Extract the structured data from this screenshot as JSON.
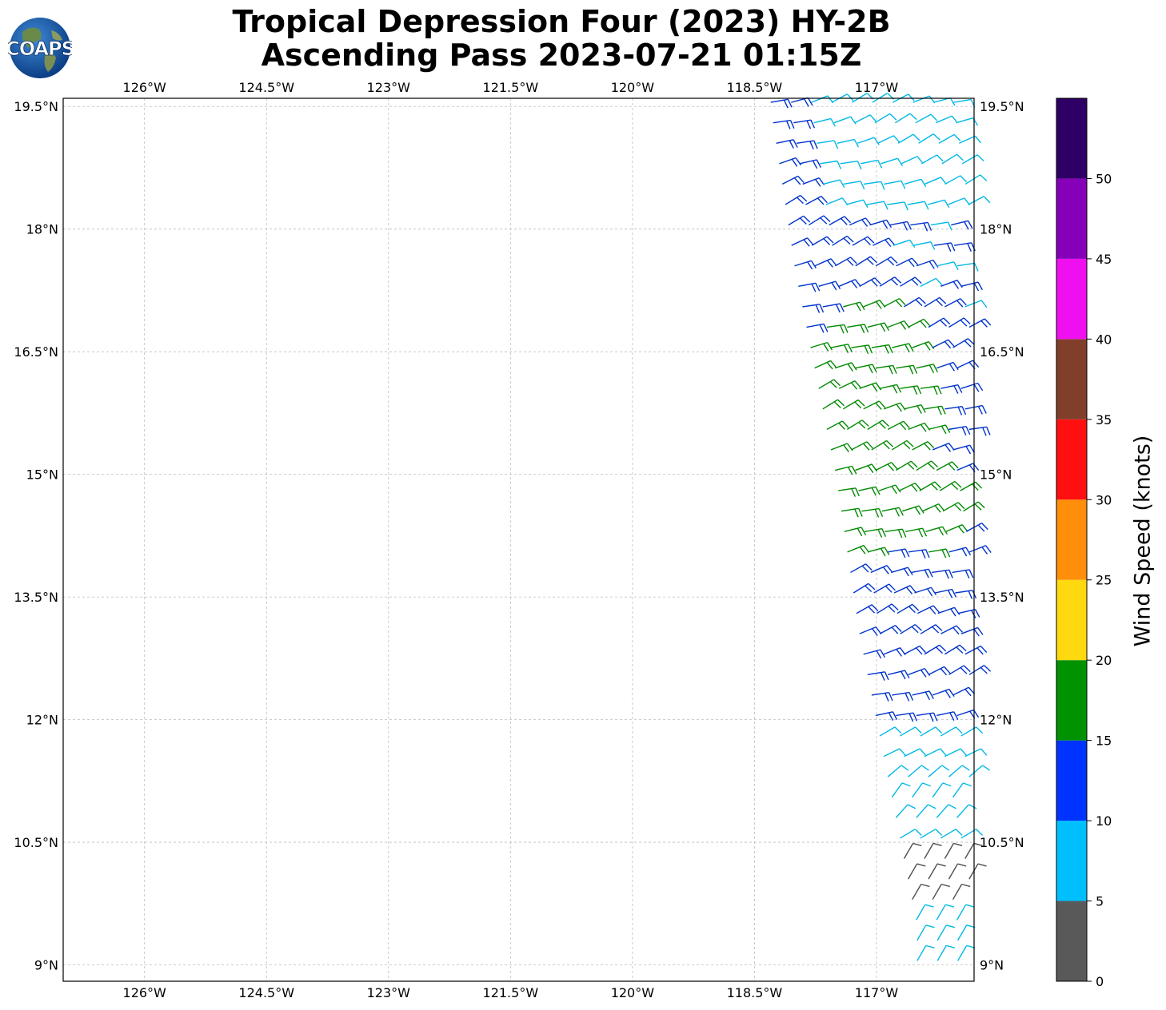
{
  "title": {
    "line1": "Tropical Depression Four (2023) HY-2B",
    "line2": "Ascending Pass 2023-07-21 01:15Z"
  },
  "logo": {
    "text": "COAPS",
    "icon": "coaps-globe-logo"
  },
  "map": {
    "lon_range": [
      -127.0,
      -115.8
    ],
    "lat_range": [
      8.8,
      19.6
    ],
    "grid": true,
    "lon_ticks": [
      -126,
      -124.5,
      -123,
      -121.5,
      -120,
      -118.5,
      -117
    ],
    "lon_tick_labels": [
      "126°W",
      "124.5°W",
      "123°W",
      "121.5°W",
      "120°W",
      "118.5°W",
      "117°W"
    ],
    "lat_ticks": [
      19.5,
      18,
      16.5,
      15,
      13.5,
      12,
      10.5,
      9
    ],
    "lat_tick_labels": [
      "19.5°N",
      "18°N",
      "16.5°N",
      "15°N",
      "13.5°N",
      "12°N",
      "10.5°N",
      "9°N"
    ],
    "swath_west_edge": [
      [
        -118.3,
        19.5
      ],
      [
        -118.0,
        17.5
      ],
      [
        -117.5,
        15.0
      ],
      [
        -117.2,
        13.0
      ],
      [
        -116.9,
        11.5
      ],
      [
        -116.5,
        9.5
      ]
    ]
  },
  "colorbar": {
    "title": "Wind Speed (knots)",
    "bins": [
      {
        "min": 0,
        "max": 5,
        "color": "#595959"
      },
      {
        "min": 5,
        "max": 10,
        "color": "#00bfff"
      },
      {
        "min": 10,
        "max": 15,
        "color": "#0033ff"
      },
      {
        "min": 15,
        "max": 20,
        "color": "#009200"
      },
      {
        "min": 20,
        "max": 25,
        "color": "#ffd90f"
      },
      {
        "min": 25,
        "max": 30,
        "color": "#ff8f0a"
      },
      {
        "min": 30,
        "max": 35,
        "color": "#ff0f0f"
      },
      {
        "min": 35,
        "max": 40,
        "color": "#803e2b"
      },
      {
        "min": 40,
        "max": 45,
        "color": "#f00ff0"
      },
      {
        "min": 45,
        "max": 50,
        "color": "#8500b8"
      },
      {
        "min": 50,
        "max": 55,
        "color": "#2e0066"
      }
    ],
    "tick_values": [
      0,
      5,
      10,
      15,
      20,
      25,
      30,
      35,
      40,
      45,
      50
    ],
    "tick_labels": [
      "0",
      "5",
      "10",
      "15",
      "20",
      "25",
      "30",
      "35",
      "40",
      "45",
      "50"
    ]
  },
  "barb_colors": {
    "calm": "#4d4d4d",
    "light": "#00b8e6",
    "moderate": "#0033cc",
    "fresh": "#008a00"
  }
}
